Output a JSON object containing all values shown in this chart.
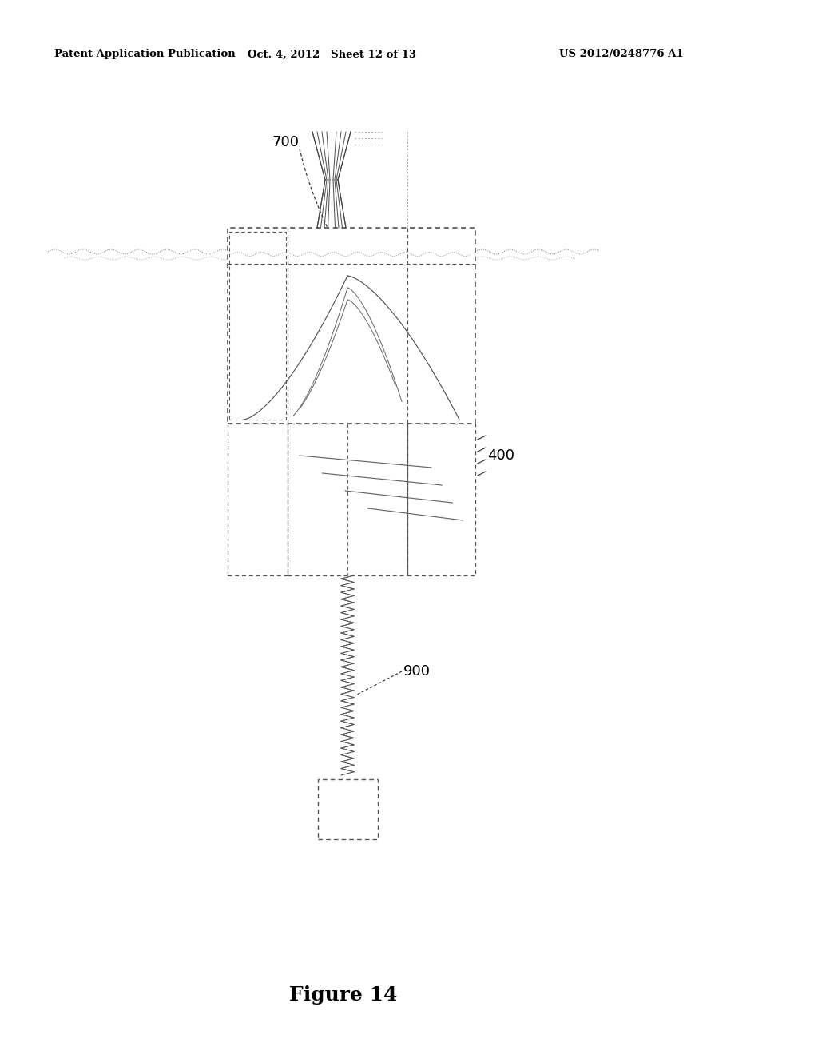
{
  "bg_color": "#ffffff",
  "header_left": "Patent Application Publication",
  "header_center": "Oct. 4, 2012   Sheet 12 of 13",
  "header_right": "US 2012/0248776 A1",
  "figure_label": "Figure 14",
  "label_700": "700",
  "label_400": "400",
  "label_900": "900",
  "line_color": "#000000",
  "dot_color": "#444444"
}
